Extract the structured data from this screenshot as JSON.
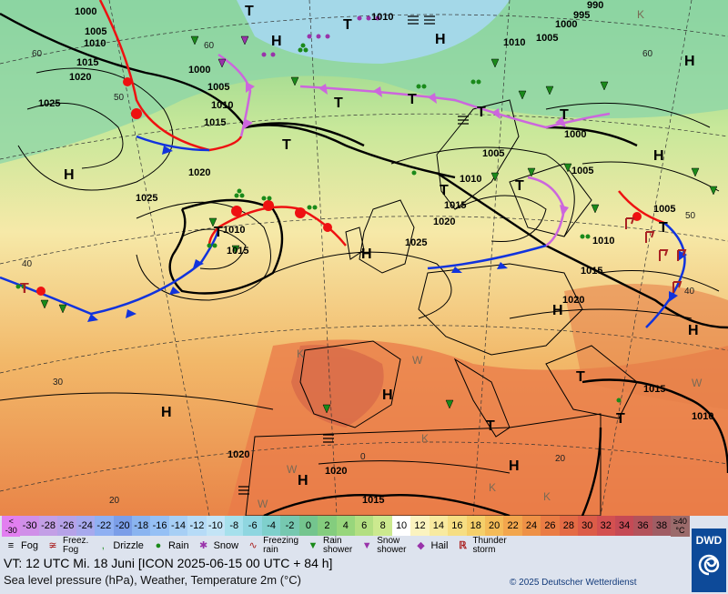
{
  "map": {
    "pressure_labels": [
      "1000",
      "1005",
      "1010",
      "1015",
      "1020",
      "1025",
      "990",
      "995"
    ],
    "highs_label": "H",
    "lows_label": "T",
    "warm_marker": "K",
    "w_marker": "W",
    "lat_labels": [
      "60",
      "50",
      "40",
      "30",
      "20",
      "60",
      "50",
      "40",
      "30",
      "20",
      "0"
    ],
    "colors": {
      "warm_front": "#ee1111",
      "cold_front": "#1133dd",
      "occluded_front": "#cc66dd",
      "isobar": "#000000",
      "rain": "#1a8a1a",
      "snow": "#9933aa",
      "thunder": "#aa2222"
    }
  },
  "temperature_scale": {
    "values": [
      "<\n-30",
      "-30",
      "-28",
      "-26",
      "-24",
      "-22",
      "-20",
      "-18",
      "-16",
      "-14",
      "-12",
      "-10",
      "-8",
      "-6",
      "-4",
      "-2",
      "0",
      "2",
      "4",
      "6",
      "8",
      "10",
      "12",
      "14",
      "16",
      "18",
      "20",
      "22",
      "24",
      "26",
      "28",
      "30",
      "32",
      "34",
      "36",
      "38",
      "≥40\n°C"
    ],
    "colors": [
      "#e27ff0",
      "#d08fe8",
      "#c39fe6",
      "#b6a2e8",
      "#a7a9ed",
      "#8fb0f2",
      "#7b9ee8",
      "#8ab4f0",
      "#95c0f5",
      "#a7cff5",
      "#b6dbf7",
      "#c3e4f6",
      "#a6e0ec",
      "#8fd6e0",
      "#7fd0cc",
      "#76c8b0",
      "#74c58e",
      "#84cd7e",
      "#98d67c",
      "#b3df82",
      "#cce98f",
      "#ffffff",
      "#fbf3bf",
      "#f8eaa0",
      "#f6de83",
      "#f5cf6a",
      "#f4bb58",
      "#f2a64d",
      "#ee9146",
      "#ea7c44",
      "#e46b45",
      "#dc5c48",
      "#d35050",
      "#c54a55",
      "#b3535b",
      "#a05d64",
      "#9b6b6b"
    ]
  },
  "legend": {
    "fog": "Fog",
    "freezing_fog": "Freez.\nFog",
    "drizzle": "Drizzle",
    "rain": "Rain",
    "snow": "Snow",
    "freezing_rain": "Freezing\nrain",
    "rain_shower": "Rain\nshower",
    "snow_shower": "Snow\nshower",
    "hail": "Hail",
    "thunderstorm": "Thunder\nstorm"
  },
  "valid_time": "VT: 12 UTC Mi.   18 Juni [ICON 2025-06-15  00 UTC + 84 h]",
  "subtitle": "Sea level pressure (hPa), Weather, Temperature 2m (°C)",
  "copyright": "© 2025 Deutscher Wetterdienst",
  "logo_text": "DWD"
}
